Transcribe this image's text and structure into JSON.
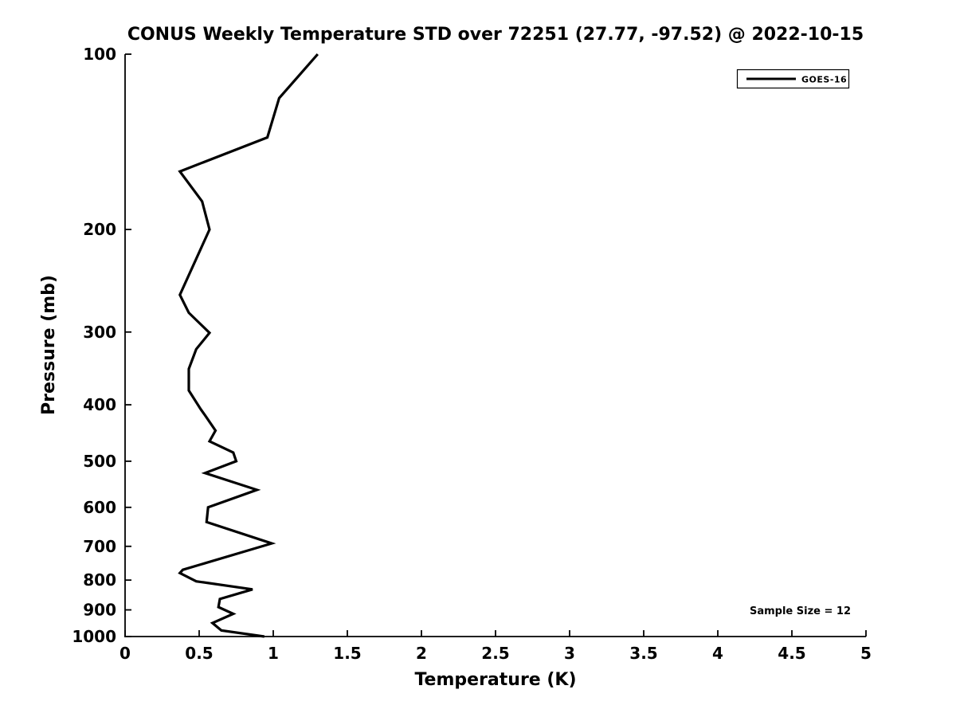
{
  "colors": {
    "background": "#ffffff",
    "foreground": "#000000",
    "series_goes16": "#000000"
  },
  "chart_data": {
    "type": "line",
    "title": "CONUS Weekly Temperature STD over 72251 (27.77, -97.52) @ 2022-10-15",
    "xlabel": "Temperature (K)",
    "ylabel": "Pressure (mb)",
    "xlim": [
      0,
      5
    ],
    "ylim": [
      100,
      1000
    ],
    "x_scale": "linear",
    "y_scale": "log",
    "y_inverted": true,
    "grid": false,
    "x_tick_values": [
      0,
      0.5,
      1,
      1.5,
      2,
      2.5,
      3,
      3.5,
      4,
      4.5,
      5
    ],
    "x_tick_labels": [
      "0",
      "0.5",
      "1",
      "1.5",
      "2",
      "2.5",
      "3",
      "3.5",
      "4",
      "4.5",
      "5"
    ],
    "y_tick_values": [
      100,
      200,
      300,
      400,
      500,
      600,
      700,
      800,
      900,
      1000
    ],
    "y_tick_labels": [
      "100",
      "200",
      "300",
      "400",
      "500",
      "600",
      "700",
      "800",
      "900",
      "1000"
    ],
    "legend": {
      "position": "top-right",
      "entries": [
        {
          "label": "GOES-16",
          "color": "#000000",
          "line_width": 3
        }
      ]
    },
    "annotation": "Sample Size = 12",
    "series": [
      {
        "name": "GOES-16",
        "color": "#000000",
        "line_width": 3.2,
        "x_field": "temperature_k",
        "y_field": "pressure_mb",
        "temperature_k": [
          1.3,
          1.04,
          0.96,
          0.37,
          0.52,
          0.57,
          0.37,
          0.43,
          0.57,
          0.48,
          0.43,
          0.43,
          0.51,
          0.54,
          0.61,
          0.57,
          0.73,
          0.75,
          0.54,
          0.89,
          0.56,
          0.55,
          0.99,
          0.39,
          0.37,
          0.48,
          0.86,
          0.64,
          0.63,
          0.73,
          0.59,
          0.65,
          0.94
        ],
        "pressure_mb": [
          100,
          119,
          139,
          159,
          179,
          200,
          259,
          278,
          301,
          321,
          347,
          378,
          407,
          417,
          443,
          462,
          483,
          500,
          524,
          560,
          600,
          636,
          692,
          768,
          778,
          804,
          830,
          862,
          890,
          914,
          948,
          976,
          1000
        ]
      }
    ]
  }
}
